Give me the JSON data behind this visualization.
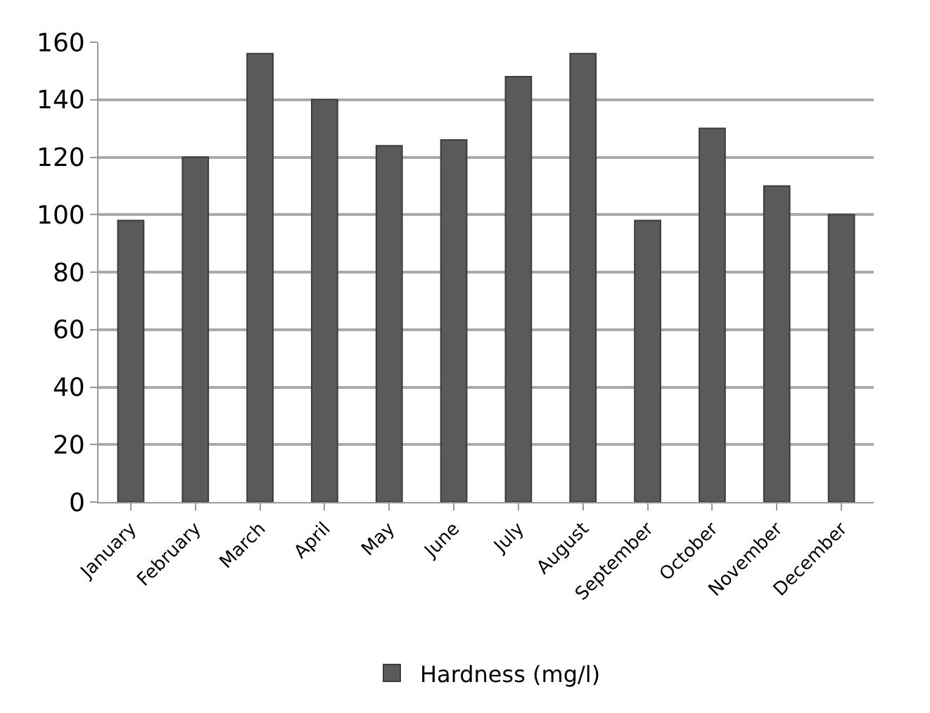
{
  "chart_data": {
    "type": "bar",
    "categories": [
      "January",
      "February",
      "March",
      "April",
      "May",
      "June",
      "July",
      "August",
      "September",
      "October",
      "November",
      "December"
    ],
    "series": [
      {
        "name": "Hardness (mg/l)",
        "color": "#5a5a5a",
        "values": [
          98,
          120,
          156,
          140,
          124,
          126,
          148,
          156,
          98,
          130,
          110,
          100
        ]
      }
    ],
    "ylim": [
      0,
      160
    ],
    "yticks": [
      0,
      20,
      40,
      60,
      80,
      100,
      120,
      140,
      160
    ],
    "grid": "y",
    "legend": "bottom"
  }
}
